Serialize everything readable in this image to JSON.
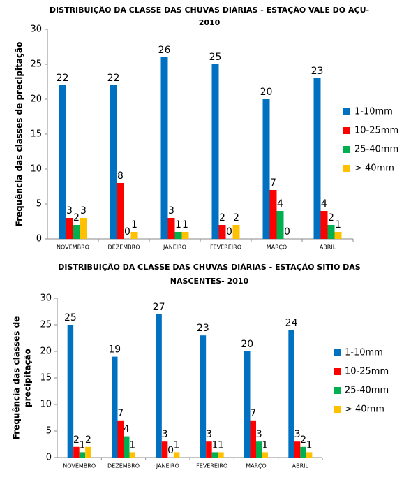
{
  "chart_data": [
    {
      "type": "bar",
      "title": [
        "DISTRIBUIÇÃO DA CLASSE DAS CHUVAS DIÁRIAS - ESTAÇÃO VALE DO AÇU-",
        "2010"
      ],
      "y_label": [
        "Frequência  das classes de precipitação"
      ],
      "categories": [
        "NOVEMBRO",
        "DEZEMBRO",
        "JANEIRO",
        "FEVEREIRO",
        "MARÇO",
        "ABRIL"
      ],
      "series": [
        {
          "name": "1-10mm",
          "color": "#0070c0",
          "values": [
            22,
            22,
            26,
            25,
            20,
            23
          ]
        },
        {
          "name": "10-25mm",
          "color": "#ff0000",
          "values": [
            3,
            8,
            3,
            2,
            7,
            4
          ]
        },
        {
          "name": "25-40mm",
          "color": "#00b050",
          "values": [
            2,
            0,
            1,
            0,
            4,
            2
          ]
        },
        {
          "name": "> 40mm",
          "color": "#ffc000",
          "values": [
            3,
            1,
            1,
            2,
            0,
            1
          ]
        }
      ],
      "ylim": [
        0,
        30
      ],
      "yticks": [
        0,
        5,
        10,
        15,
        20,
        25,
        30
      ],
      "grid": false,
      "legend": "right"
    },
    {
      "type": "bar",
      "title": [
        "DISTRIBUIÇÃO DA CLASSE DAS CHUVAS DIÁRIAS - ESTAÇÃO SITIO DAS",
        "NASCENTES- 2010"
      ],
      "y_label": [
        "Frequência  das classes de",
        "precipitação"
      ],
      "categories": [
        "NOVEMBRO",
        "DEZEMBRO",
        "JANEIRO",
        "FEVEREIRO",
        "MARÇO",
        "ABRIL"
      ],
      "series": [
        {
          "name": "1-10mm",
          "color": "#0070c0",
          "values": [
            25,
            19,
            27,
            23,
            20,
            24
          ]
        },
        {
          "name": "10-25mm",
          "color": "#ff0000",
          "values": [
            2,
            7,
            3,
            3,
            7,
            3
          ]
        },
        {
          "name": "25-40mm",
          "color": "#00b050",
          "values": [
            1,
            4,
            0,
            1,
            3,
            2
          ]
        },
        {
          "name": "> 40mm",
          "color": "#ffc000",
          "values": [
            2,
            1,
            1,
            1,
            1,
            1
          ]
        }
      ],
      "ylim": [
        0,
        30
      ],
      "yticks": [
        0,
        5,
        10,
        15,
        20,
        25,
        30
      ],
      "grid": false,
      "legend": "right"
    }
  ]
}
